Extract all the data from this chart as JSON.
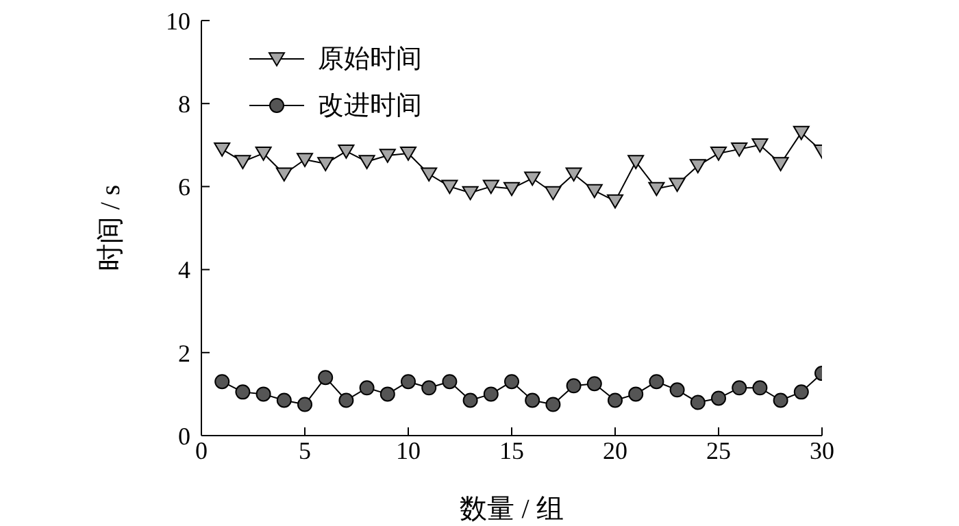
{
  "chart_data": {
    "type": "line",
    "xlabel": "数量 / 组",
    "ylabel": "时间 / s",
    "x": [
      1,
      2,
      3,
      4,
      5,
      6,
      7,
      8,
      9,
      10,
      11,
      12,
      13,
      14,
      15,
      16,
      17,
      18,
      19,
      20,
      21,
      22,
      23,
      24,
      25,
      26,
      27,
      28,
      29,
      30
    ],
    "xlim": [
      0,
      30
    ],
    "xticks": [
      0,
      5,
      10,
      15,
      20,
      25,
      30
    ],
    "ylim": [
      0,
      10
    ],
    "yticks": [
      0,
      2,
      4,
      6,
      8,
      10
    ],
    "grid": false,
    "legend": "top left",
    "line_style": "solid",
    "series": [
      {
        "name": "原始时间",
        "color": "#a6a6a6",
        "marker": "triangle",
        "values": [
          6.9,
          6.6,
          6.8,
          6.3,
          6.65,
          6.55,
          6.85,
          6.6,
          6.75,
          6.8,
          6.3,
          6.0,
          5.85,
          6.0,
          5.95,
          6.2,
          5.85,
          6.3,
          5.9,
          5.65,
          6.6,
          5.95,
          6.05,
          6.5,
          6.8,
          6.9,
          7.0,
          6.55,
          7.3,
          6.85
        ]
      },
      {
        "name": "改进时间",
        "color": "#555555",
        "marker": "circle",
        "values": [
          1.3,
          1.05,
          1.0,
          0.85,
          0.75,
          1.4,
          0.85,
          1.15,
          1.0,
          1.3,
          1.15,
          1.3,
          0.85,
          1.0,
          1.3,
          0.85,
          0.75,
          1.2,
          1.25,
          0.85,
          1.0,
          1.3,
          1.1,
          0.8,
          0.9,
          1.15,
          1.15,
          0.85,
          1.05,
          1.5
        ]
      }
    ]
  }
}
